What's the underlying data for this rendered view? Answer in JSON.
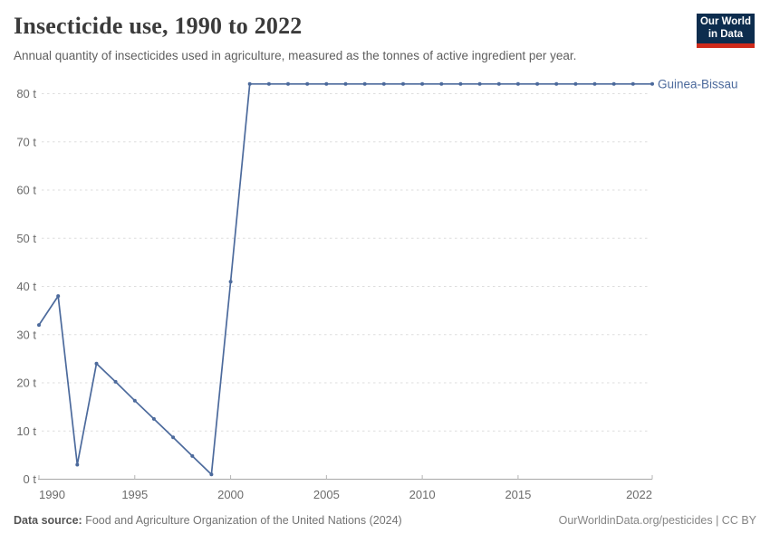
{
  "header": {
    "title": "Insecticide use, 1990 to 2022",
    "subtitle": "Annual quantity of insecticides used in agriculture, measured as the tonnes of active ingredient per year."
  },
  "logo": {
    "line1": "Our World",
    "line2": "in Data",
    "bg_color": "#0d2d4e",
    "bar_color": "#cf2a1b"
  },
  "chart_data": {
    "type": "line",
    "title": "Insecticide use, 1990 to 2022",
    "entity_label": "Guinea-Bissau",
    "unit": "tonnes of active ingredient",
    "line_color": "#4c6a9c",
    "x": [
      1990,
      1991,
      1992,
      1993,
      1994,
      1995,
      1996,
      1997,
      1998,
      1999,
      2000,
      2001,
      2002,
      2003,
      2004,
      2005,
      2006,
      2007,
      2008,
      2009,
      2010,
      2011,
      2012,
      2013,
      2014,
      2015,
      2016,
      2017,
      2018,
      2019,
      2020,
      2021,
      2022
    ],
    "values": [
      32,
      38,
      3,
      24,
      20.2,
      16.3,
      12.5,
      8.7,
      4.8,
      1,
      41,
      82,
      82,
      82,
      82,
      82,
      82,
      82,
      82,
      82,
      82,
      82,
      82,
      82,
      82,
      82,
      82,
      82,
      82,
      82,
      82,
      82,
      82
    ],
    "xlim": [
      1990,
      2022
    ],
    "ylim": [
      0,
      80
    ],
    "yticks": [
      0,
      10,
      20,
      30,
      40,
      50,
      60,
      70,
      80
    ],
    "ytick_labels": [
      "0 t",
      "10 t",
      "20 t",
      "30 t",
      "40 t",
      "50 t",
      "60 t",
      "70 t",
      "80 t"
    ],
    "xticks": [
      1990,
      1995,
      2000,
      2005,
      2010,
      2015,
      2022
    ],
    "grid": "horizontal dashed",
    "legend_position": "end-of-line label",
    "markers": "dots on every year"
  },
  "footer": {
    "datasource_label": "Data source:",
    "datasource_text": " Food and Agriculture Organization of the United Nations (2024)",
    "attribution_link": "OurWorldinData.org/pesticides",
    "attribution_license": " | CC BY"
  }
}
